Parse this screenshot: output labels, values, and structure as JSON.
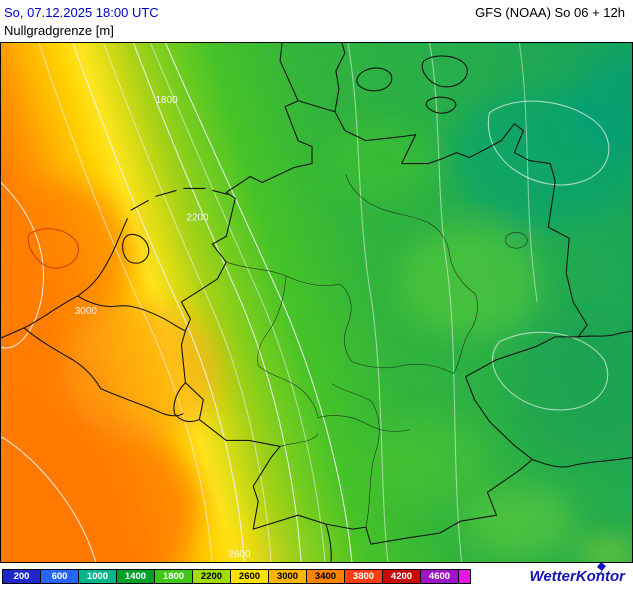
{
  "header": {
    "datetime": "So, 07.12.2025 18:00 UTC",
    "model_run": "GFS (NOAA) So 06 + 12h",
    "parameter": "Nullgradgrenze [m]"
  },
  "map": {
    "contour_labels": [
      {
        "value": "1800"
      },
      {
        "value": "2200"
      },
      {
        "value": "2600"
      },
      {
        "value": "3000"
      }
    ]
  },
  "legend": {
    "items": [
      {
        "label": "200",
        "color": "#1e28c8",
        "text_color": "#ffffff"
      },
      {
        "label": "600",
        "color": "#2864ff",
        "text_color": "#ffffff"
      },
      {
        "label": "1000",
        "color": "#00b48c",
        "text_color": "#ffffff"
      },
      {
        "label": "1400",
        "color": "#00a028",
        "text_color": "#ffffff"
      },
      {
        "label": "1800",
        "color": "#3cc814",
        "text_color": "#ffffff"
      },
      {
        "label": "2200",
        "color": "#a0dc00",
        "text_color": "#000000"
      },
      {
        "label": "2600",
        "color": "#ffe100",
        "text_color": "#000000"
      },
      {
        "label": "3000",
        "color": "#ffb400",
        "text_color": "#000000"
      },
      {
        "label": "3400",
        "color": "#ff8200",
        "text_color": "#000000"
      },
      {
        "label": "3800",
        "color": "#ff3c14",
        "text_color": "#ffffff"
      },
      {
        "label": "4200",
        "color": "#c80a0a",
        "text_color": "#ffffff"
      },
      {
        "label": "4600",
        "color": "#a014c8",
        "text_color": "#ffffff"
      },
      {
        "label": "",
        "color": "#e614e6",
        "text_color": "#ffffff"
      }
    ]
  },
  "footer": {
    "logo_text": "WetterKontor"
  }
}
